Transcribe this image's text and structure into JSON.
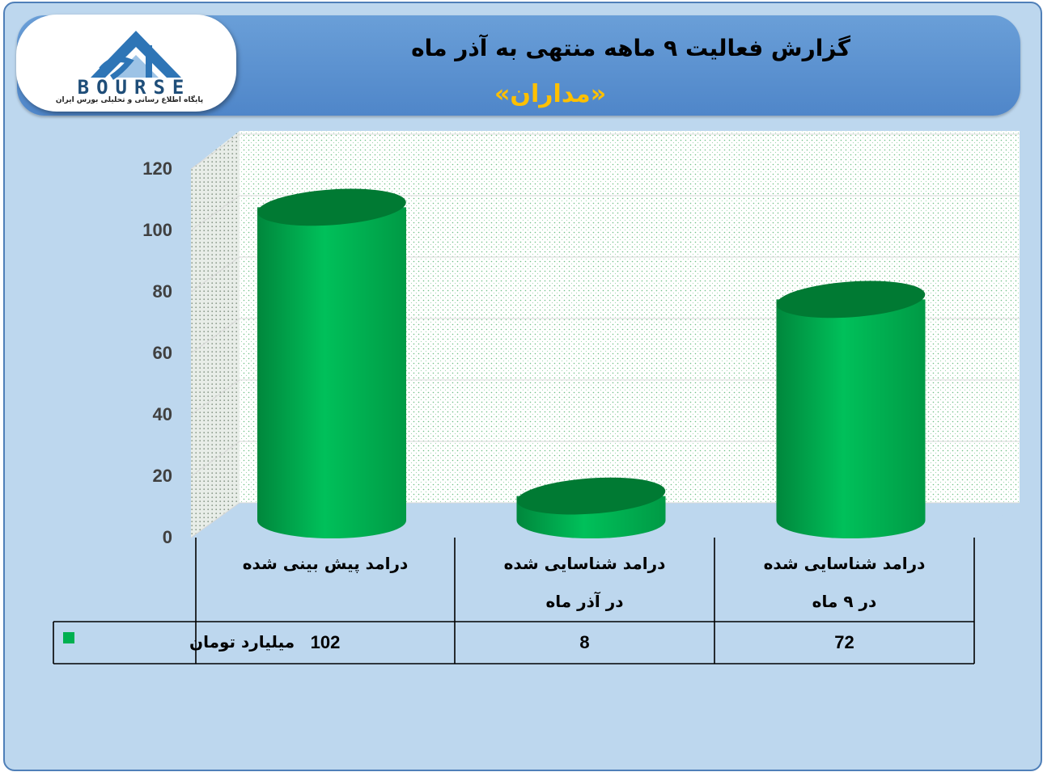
{
  "header": {
    "title": "گزارش فعالیت ۹ ماهه منتهی به آذر ماه",
    "subtitle": "«مداران»"
  },
  "logo": {
    "word": "BOURSE",
    "tagline": "پایگاه اطلاع رسانی و تحلیلی بورس ایران"
  },
  "colors": {
    "bar": "#00b050",
    "bar_dark": "#007a33",
    "background": "#bdd7ee",
    "title_bar": "#5b92d3",
    "subtitle": "#ffc000"
  },
  "chart_data": {
    "type": "bar",
    "style": "3d-cylinder",
    "title": "گزارش فعالیت ۹ ماهه منتهی به آذر ماه",
    "subtitle": "«مداران»",
    "categories": [
      [
        "درامد پیش بینی شده"
      ],
      [
        "درامد شناسایی شده",
        "در آذر ماه"
      ],
      [
        "درامد شناسایی شده",
        "در ۹ ماه"
      ]
    ],
    "series": [
      {
        "name": "میلیارد تومان",
        "values": [
          102,
          8,
          72
        ]
      }
    ],
    "yticks": [
      "0",
      "20",
      "40",
      "60",
      "80",
      "100",
      "120"
    ],
    "ylim": [
      0,
      120
    ],
    "grid": true,
    "legend": "data-table"
  }
}
